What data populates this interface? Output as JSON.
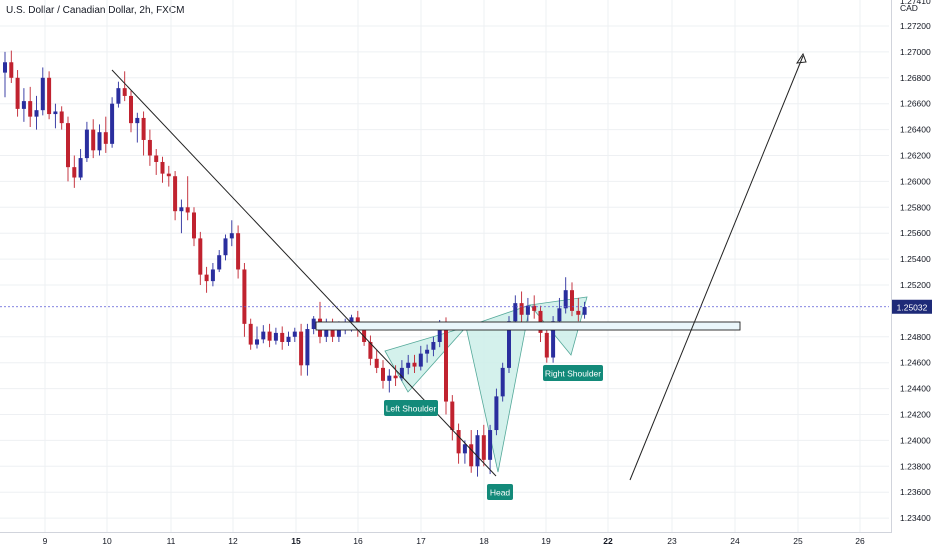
{
  "header": {
    "title": "U.S. Dollar / Canadian Dollar, 2h, FXCM"
  },
  "chart_data": {
    "type": "candlestick",
    "symbol": "U.S. Dollar / Canadian Dollar",
    "interval": "2h",
    "source": "FXCM",
    "currency": "CAD",
    "top_right_label": "1.27410",
    "current_price": "1.25032",
    "ylim": [
      1.2326,
      1.2742
    ],
    "yticks": [
      "1.27200",
      "1.27000",
      "1.26800",
      "1.26600",
      "1.26400",
      "1.26200",
      "1.26000",
      "1.25800",
      "1.25600",
      "1.25400",
      "1.25200",
      "1.24800",
      "1.24600",
      "1.24400",
      "1.24200",
      "1.24000",
      "1.23800",
      "1.23600",
      "1.23400"
    ],
    "xticks": [
      {
        "label": "9",
        "bold": false
      },
      {
        "label": "10",
        "bold": false
      },
      {
        "label": "11",
        "bold": false
      },
      {
        "label": "12",
        "bold": false
      },
      {
        "label": "15",
        "bold": true
      },
      {
        "label": "16",
        "bold": false
      },
      {
        "label": "17",
        "bold": false
      },
      {
        "label": "18",
        "bold": false
      },
      {
        "label": "19",
        "bold": false
      },
      {
        "label": "22",
        "bold": true
      },
      {
        "label": "23",
        "bold": false
      },
      {
        "label": "24",
        "bold": false
      },
      {
        "label": "25",
        "bold": false
      },
      {
        "label": "26",
        "bold": false
      }
    ],
    "bull_color": "#2a2e9e",
    "bear_color": "#c0222f",
    "candles": [
      [
        1.2684,
        1.27,
        1.2665,
        1.2692
      ],
      [
        1.2692,
        1.2701,
        1.2676,
        1.268
      ],
      [
        1.268,
        1.2686,
        1.265,
        1.2656
      ],
      [
        1.2656,
        1.2672,
        1.2646,
        1.2662
      ],
      [
        1.2662,
        1.2673,
        1.2642,
        1.265
      ],
      [
        1.265,
        1.2666,
        1.264,
        1.2655
      ],
      [
        1.2655,
        1.2688,
        1.2651,
        1.268
      ],
      [
        1.268,
        1.2685,
        1.2648,
        1.2652
      ],
      [
        1.2652,
        1.266,
        1.2641,
        1.2654
      ],
      [
        1.2654,
        1.2658,
        1.264,
        1.2645
      ],
      [
        1.2645,
        1.265,
        1.26,
        1.2611
      ],
      [
        1.2611,
        1.262,
        1.2595,
        1.2603
      ],
      [
        1.2603,
        1.2625,
        1.2601,
        1.2618
      ],
      [
        1.2618,
        1.2646,
        1.2615,
        1.264
      ],
      [
        1.264,
        1.2648,
        1.2618,
        1.2624
      ],
      [
        1.2624,
        1.2644,
        1.262,
        1.2638
      ],
      [
        1.2638,
        1.265,
        1.2622,
        1.2629
      ],
      [
        1.2629,
        1.2665,
        1.2626,
        1.266
      ],
      [
        1.266,
        1.2677,
        1.2657,
        1.2672
      ],
      [
        1.2672,
        1.2685,
        1.2662,
        1.2666
      ],
      [
        1.2666,
        1.267,
        1.2638,
        1.2645
      ],
      [
        1.2645,
        1.2653,
        1.263,
        1.2649
      ],
      [
        1.2649,
        1.2654,
        1.262,
        1.2632
      ],
      [
        1.2632,
        1.264,
        1.2612,
        1.262
      ],
      [
        1.262,
        1.2625,
        1.2605,
        1.2615
      ],
      [
        1.2615,
        1.2619,
        1.2599,
        1.2606
      ],
      [
        1.2606,
        1.2612,
        1.2596,
        1.2604
      ],
      [
        1.2604,
        1.2608,
        1.257,
        1.2577
      ],
      [
        1.2577,
        1.2586,
        1.256,
        1.258
      ],
      [
        1.258,
        1.2604,
        1.257,
        1.2576
      ],
      [
        1.2576,
        1.258,
        1.255,
        1.2556
      ],
      [
        1.2556,
        1.2561,
        1.252,
        1.2528
      ],
      [
        1.2528,
        1.2534,
        1.2514,
        1.2523
      ],
      [
        1.2523,
        1.2537,
        1.2519,
        1.2532
      ],
      [
        1.2532,
        1.2547,
        1.253,
        1.2543
      ],
      [
        1.2543,
        1.2559,
        1.2539,
        1.2556
      ],
      [
        1.2556,
        1.257,
        1.255,
        1.256
      ],
      [
        1.256,
        1.2566,
        1.2525,
        1.2532
      ],
      [
        1.2532,
        1.2537,
        1.248,
        1.249
      ],
      [
        1.249,
        1.2494,
        1.247,
        1.2474
      ],
      [
        1.2474,
        1.2488,
        1.2471,
        1.2478
      ],
      [
        1.2478,
        1.2489,
        1.2475,
        1.2484
      ],
      [
        1.2484,
        1.249,
        1.2472,
        1.2477
      ],
      [
        1.2477,
        1.2487,
        1.2474,
        1.2483
      ],
      [
        1.2483,
        1.2488,
        1.247,
        1.2476
      ],
      [
        1.2476,
        1.2484,
        1.2473,
        1.248
      ],
      [
        1.248,
        1.2487,
        1.2476,
        1.2484
      ],
      [
        1.2484,
        1.249,
        1.245,
        1.2458
      ],
      [
        1.2458,
        1.249,
        1.245,
        1.2486
      ],
      [
        1.2486,
        1.2496,
        1.2482,
        1.2494
      ],
      [
        1.2494,
        1.2507,
        1.2475,
        1.248
      ],
      [
        1.248,
        1.2494,
        1.2476,
        1.249
      ],
      [
        1.249,
        1.2494,
        1.2476,
        1.248
      ],
      [
        1.248,
        1.2492,
        1.2476,
        1.2488
      ],
      [
        1.2488,
        1.2494,
        1.2482,
        1.2489
      ],
      [
        1.2489,
        1.2497,
        1.2484,
        1.2495
      ],
      [
        1.2495,
        1.25,
        1.248,
        1.2485
      ],
      [
        1.2485,
        1.2489,
        1.2473,
        1.2476
      ],
      [
        1.2476,
        1.2481,
        1.2458,
        1.2463
      ],
      [
        1.2463,
        1.247,
        1.2452,
        1.2456
      ],
      [
        1.2456,
        1.2462,
        1.244,
        1.2446
      ],
      [
        1.2446,
        1.2455,
        1.2437,
        1.245
      ],
      [
        1.245,
        1.2458,
        1.2442,
        1.2448
      ],
      [
        1.2448,
        1.2462,
        1.2446,
        1.2456
      ],
      [
        1.2456,
        1.2466,
        1.2451,
        1.246
      ],
      [
        1.246,
        1.2466,
        1.2452,
        1.2457
      ],
      [
        1.2457,
        1.2473,
        1.2454,
        1.2467
      ],
      [
        1.2467,
        1.2474,
        1.246,
        1.247
      ],
      [
        1.247,
        1.248,
        1.2465,
        1.2476
      ],
      [
        1.2476,
        1.2493,
        1.2472,
        1.2491
      ],
      [
        1.2491,
        1.2495,
        1.242,
        1.243
      ],
      [
        1.243,
        1.2435,
        1.24,
        1.2408
      ],
      [
        1.2408,
        1.2413,
        1.2382,
        1.239
      ],
      [
        1.239,
        1.24,
        1.2382,
        1.2397
      ],
      [
        1.2397,
        1.2408,
        1.2375,
        1.238
      ],
      [
        1.238,
        1.2408,
        1.2372,
        1.2404
      ],
      [
        1.2404,
        1.2412,
        1.238,
        1.2385
      ],
      [
        1.2385,
        1.2412,
        1.2374,
        1.2408
      ],
      [
        1.2408,
        1.244,
        1.2404,
        1.2434
      ],
      [
        1.2434,
        1.246,
        1.243,
        1.2456
      ],
      [
        1.2456,
        1.2496,
        1.2452,
        1.2492
      ],
      [
        1.2492,
        1.2512,
        1.2486,
        1.2506
      ],
      [
        1.2506,
        1.2515,
        1.249,
        1.2497
      ],
      [
        1.2497,
        1.251,
        1.2492,
        1.2504
      ],
      [
        1.2504,
        1.2512,
        1.2494,
        1.25
      ],
      [
        1.25,
        1.2504,
        1.2476,
        1.2483
      ],
      [
        1.2483,
        1.2487,
        1.246,
        1.2464
      ],
      [
        1.2464,
        1.2496,
        1.246,
        1.2492
      ],
      [
        1.2492,
        1.251,
        1.2488,
        1.2502
      ],
      [
        1.2502,
        1.2526,
        1.2498,
        1.2516
      ],
      [
        1.2516,
        1.2522,
        1.2496,
        1.25
      ],
      [
        1.25,
        1.251,
        1.2492,
        1.2497
      ],
      [
        1.2497,
        1.2507,
        1.2494,
        1.2503
      ]
    ],
    "annotations": {
      "labels": [
        "Left Shoulder",
        "Head",
        "Right Shoulder"
      ]
    }
  },
  "colors": {
    "price_line": "#5b5bd6",
    "price_tag_bg": "#1e2a78",
    "pattern_fill": "#cdeee9",
    "pattern_stroke": "#55a99a",
    "label_bg": "#138a7a",
    "neckline_stroke": "#222222",
    "neckline_fill": "#eaf6fb",
    "grid": "#eef0f3",
    "axis": "#d1d4dc"
  }
}
